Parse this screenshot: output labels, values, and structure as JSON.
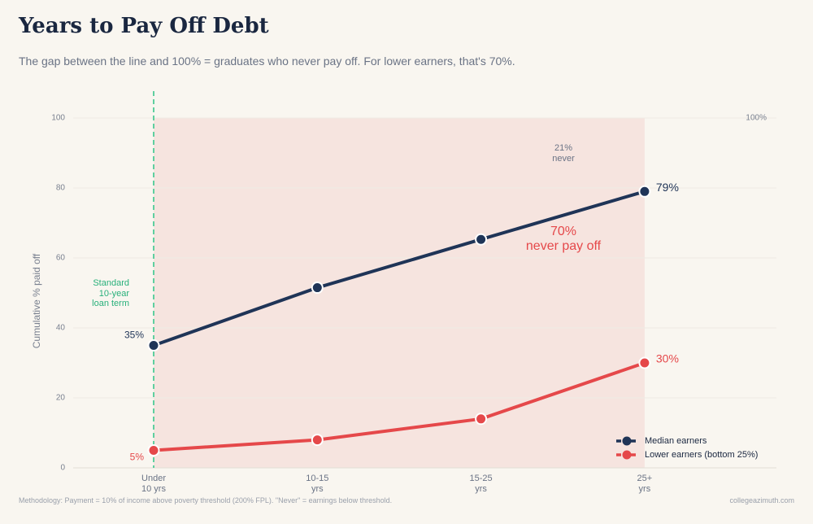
{
  "chart_data": {
    "type": "line",
    "title": "Years to Pay Off Debt",
    "subtitle": "The gap between the line and 100% = graduates who never pay off. For lower earners, that's 70%.",
    "y_label": "Cumulative % paid off",
    "categories": [
      "Under\n10 yrs",
      "10-15\nyrs",
      "15-25\nyrs",
      "25+\nyrs"
    ],
    "series": [
      {
        "name": "Median earners",
        "color": "#1f3457",
        "values": [
          35,
          51.5,
          65.3,
          79
        ],
        "value_labels": [
          "35%",
          null,
          null,
          "79%"
        ]
      },
      {
        "name": "Lower earners (bottom 25%)",
        "color": "#e5484a",
        "values": [
          5,
          8,
          14,
          30
        ],
        "value_labels": [
          "5%",
          null,
          null,
          "30%"
        ]
      }
    ],
    "ylim": [
      0,
      100
    ],
    "yticks": [
      0,
      20,
      40,
      60,
      80,
      100
    ],
    "grid": true,
    "legend": "lower right",
    "annotations": {
      "gap_label": "70%\nnever pay off",
      "median_gap_label": "21%\nnever",
      "reference_label": "100%",
      "term_label": "Standard\n10-year\nloan term"
    }
  },
  "footer": {
    "methodology": "Methodology: Payment = 10% of income above poverty threshold (200% FPL). \"Never\" = earnings below threshold.",
    "source": "collegeazimuth.com"
  }
}
